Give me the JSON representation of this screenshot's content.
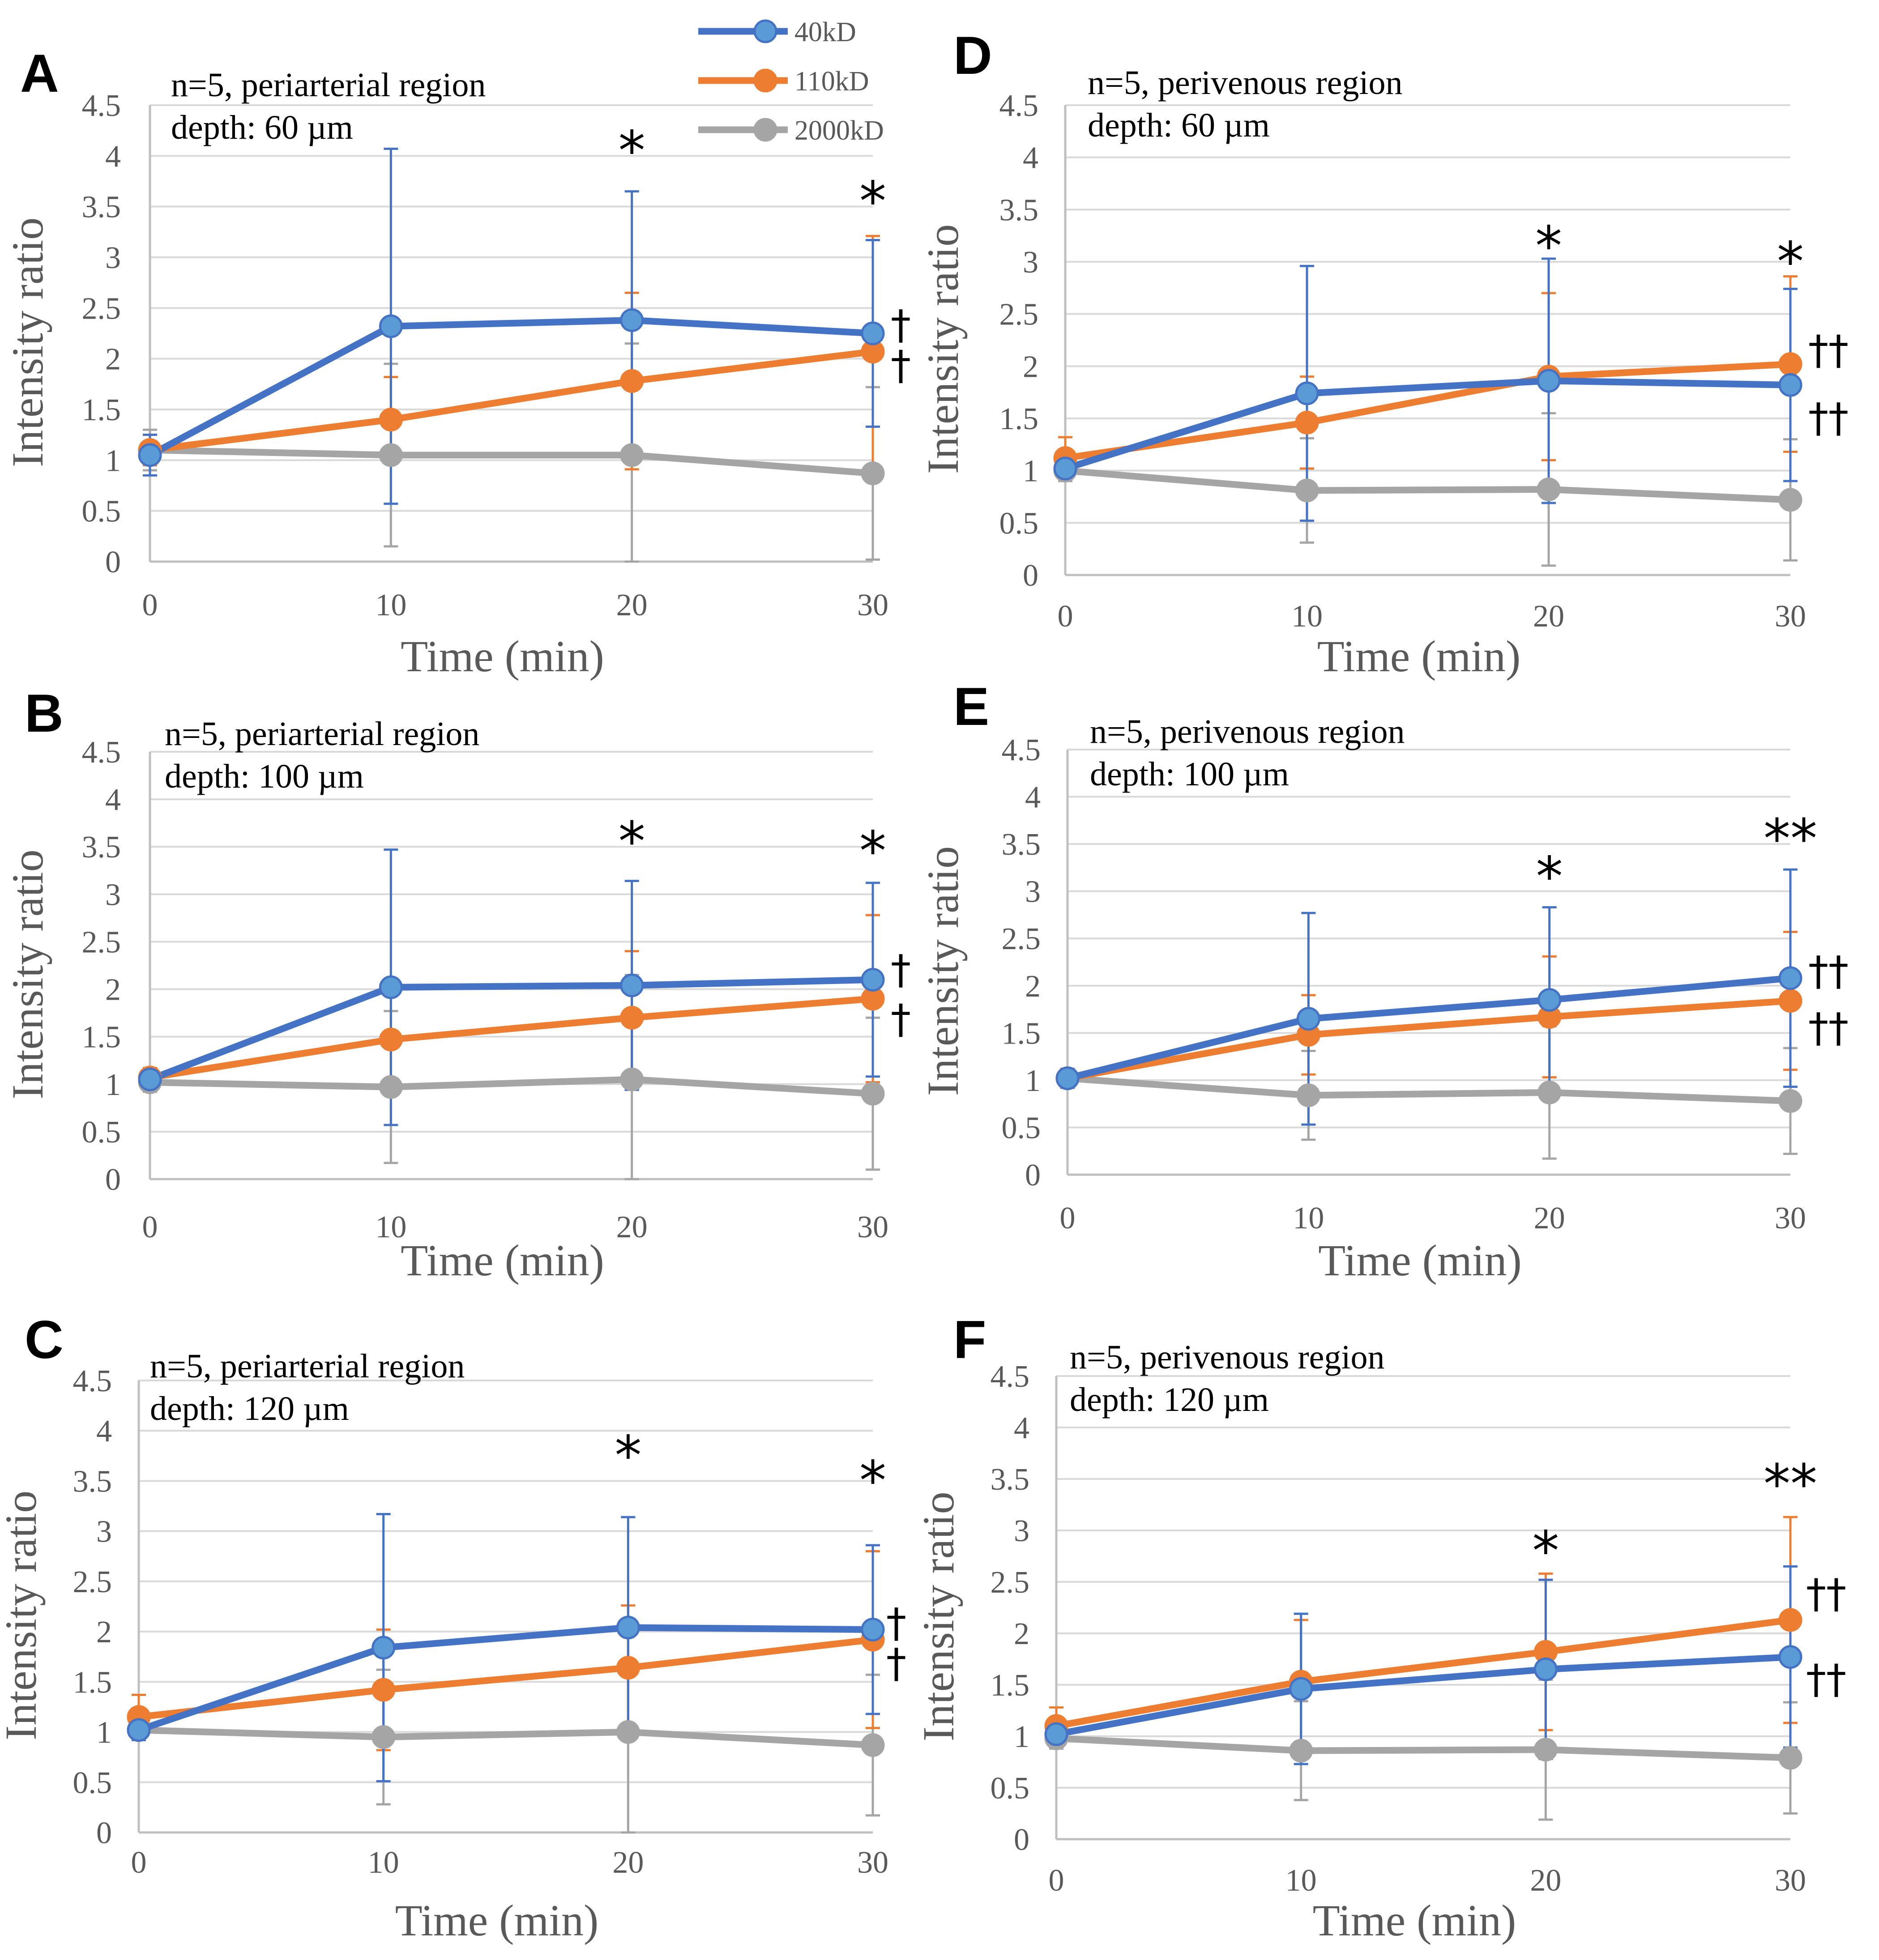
{
  "legend": [
    {
      "label": "40kD",
      "color": "#4472C4",
      "marker_color": "#5B9BD5"
    },
    {
      "label": "110kD",
      "color": "#ED7D31",
      "marker_color": "#ED7D31"
    },
    {
      "label": "2000kD",
      "color": "#A5A5A5",
      "marker_color": "#A5A5A5"
    }
  ],
  "chart_data": [
    {
      "panel": "A",
      "type": "line",
      "annotation": [
        "n=5, periarterial region",
        "depth: 60 µm"
      ],
      "xlabel": "Time (min)",
      "ylabel": "Intensity ratio",
      "x": [
        0,
        10,
        20,
        30
      ],
      "ylim": [
        0,
        4.5
      ],
      "yticks": [
        "0",
        "0.5",
        "1",
        "1.5",
        "2",
        "2.5",
        "3",
        "3.5",
        "4",
        "4.5"
      ],
      "series": [
        {
          "name": "40kD",
          "values": [
            1.05,
            2.32,
            2.38,
            2.25
          ],
          "err": [
            0.2,
            1.75,
            1.27,
            0.92
          ]
        },
        {
          "name": "110kD",
          "values": [
            1.1,
            1.4,
            1.78,
            2.07
          ],
          "err": [
            0.15,
            0.42,
            0.87,
            1.14
          ]
        },
        {
          "name": "2000kD",
          "values": [
            1.1,
            1.05,
            1.05,
            0.87
          ],
          "err": [
            0.2,
            0.9,
            1.1,
            0.85
          ]
        }
      ],
      "markers": [
        {
          "x": 20,
          "text": "*",
          "y": 4.0
        },
        {
          "x": 30,
          "text": "*",
          "y": 3.5
        }
      ],
      "daggers": [
        {
          "y": 2.33,
          "text": "†"
        },
        {
          "y": 1.93,
          "text": "†"
        }
      ]
    },
    {
      "panel": "B",
      "type": "line",
      "annotation": [
        "n=5, periarterial region",
        "depth: 100 µm"
      ],
      "xlabel": "Time (min)",
      "ylabel": "Intensity ratio",
      "x": [
        0,
        10,
        20,
        30
      ],
      "ylim": [
        0,
        4.5
      ],
      "yticks": [
        "0",
        "0.5",
        "1",
        "1.5",
        "2",
        "2.5",
        "3",
        "3.5",
        "4",
        "4.5"
      ],
      "series": [
        {
          "name": "40kD",
          "values": [
            1.05,
            2.02,
            2.04,
            2.1
          ],
          "err": [
            0.1,
            1.45,
            1.1,
            1.02
          ]
        },
        {
          "name": "110kD",
          "values": [
            1.07,
            1.47,
            1.7,
            1.9
          ],
          "err": [
            0.1,
            0.5,
            0.7,
            0.88
          ]
        },
        {
          "name": "2000kD",
          "values": [
            1.02,
            0.97,
            1.05,
            0.9
          ],
          "err": [
            0.1,
            0.8,
            1.1,
            0.8
          ]
        }
      ],
      "markers": [
        {
          "x": 20,
          "text": "*",
          "y": 3.5
        },
        {
          "x": 30,
          "text": "*",
          "y": 3.4
        }
      ],
      "daggers": [
        {
          "y": 2.2,
          "text": "†"
        },
        {
          "y": 1.68,
          "text": "†"
        }
      ]
    },
    {
      "panel": "C",
      "type": "line",
      "annotation": [
        "n=5, periarterial region",
        "depth: 120 µm"
      ],
      "xlabel": "Time (min)",
      "ylabel": "Intensity ratio",
      "x": [
        0,
        10,
        20,
        30
      ],
      "ylim": [
        0,
        4.5
      ],
      "yticks": [
        "0",
        "0.5",
        "1",
        "1.5",
        "2",
        "2.5",
        "3",
        "3.5",
        "4",
        "4.5"
      ],
      "series": [
        {
          "name": "40kD",
          "values": [
            1.02,
            1.84,
            2.04,
            2.02
          ],
          "err": [
            0.1,
            1.33,
            1.1,
            0.84
          ]
        },
        {
          "name": "110kD",
          "values": [
            1.15,
            1.42,
            1.64,
            1.92
          ],
          "err": [
            0.22,
            0.6,
            0.62,
            0.88
          ]
        },
        {
          "name": "2000kD",
          "values": [
            1.02,
            0.95,
            1.0,
            0.87
          ],
          "err": [
            0.1,
            0.67,
            1.0,
            0.7
          ]
        }
      ],
      "markers": [
        {
          "x": 20,
          "text": "*",
          "y": 3.7
        },
        {
          "x": 30,
          "text": "*",
          "y": 3.45
        }
      ],
      "daggers": [
        {
          "y": 2.08,
          "text": "†"
        },
        {
          "y": 1.68,
          "text": "†"
        }
      ]
    },
    {
      "panel": "D",
      "type": "line",
      "annotation": [
        "n=5, perivenous region",
        "depth: 60 µm"
      ],
      "xlabel": "Time (min)",
      "ylabel": "Intensity ratio",
      "x": [
        0,
        10,
        20,
        30
      ],
      "ylim": [
        0,
        4.5
      ],
      "yticks": [
        "0",
        "0.5",
        "1",
        "1.5",
        "2",
        "2.5",
        "3",
        "3.5",
        "4",
        "4.5"
      ],
      "series": [
        {
          "name": "40kD",
          "values": [
            1.02,
            1.74,
            1.86,
            1.82
          ],
          "err": [
            0.1,
            1.22,
            1.17,
            0.92
          ]
        },
        {
          "name": "110kD",
          "values": [
            1.12,
            1.46,
            1.9,
            2.02
          ],
          "err": [
            0.2,
            0.44,
            0.8,
            0.84
          ]
        },
        {
          "name": "2000kD",
          "values": [
            1.0,
            0.81,
            0.82,
            0.72
          ],
          "err": [
            0.1,
            0.5,
            0.73,
            0.58
          ]
        }
      ],
      "markers": [
        {
          "x": 20,
          "text": "*",
          "y": 3.1
        },
        {
          "x": 30,
          "text": "*",
          "y": 2.95
        }
      ],
      "daggers": [
        {
          "y": 2.15,
          "text": "††"
        },
        {
          "y": 1.5,
          "text": "††"
        }
      ]
    },
    {
      "panel": "E",
      "type": "line",
      "annotation": [
        "n=5, perivenous region",
        "depth: 100 µm"
      ],
      "xlabel": "Time (min)",
      "ylabel": "Intensity ratio",
      "x": [
        0,
        10,
        20,
        30
      ],
      "ylim": [
        0,
        4.5
      ],
      "yticks": [
        "0",
        "0.5",
        "1",
        "1.5",
        "2",
        "2.5",
        "3",
        "3.5",
        "4",
        "4.5"
      ],
      "series": [
        {
          "name": "40kD",
          "values": [
            1.02,
            1.65,
            1.85,
            2.08
          ],
          "err": [
            0.1,
            1.12,
            0.98,
            1.15
          ]
        },
        {
          "name": "110kD",
          "values": [
            1.02,
            1.48,
            1.67,
            1.84
          ],
          "err": [
            0.1,
            0.42,
            0.64,
            0.73
          ]
        },
        {
          "name": "2000kD",
          "values": [
            1.02,
            0.84,
            0.87,
            0.78
          ],
          "err": [
            0.1,
            0.47,
            0.7,
            0.56
          ]
        }
      ],
      "markers": [
        {
          "x": 20,
          "text": "*",
          "y": 3.1
        },
        {
          "x": 30,
          "text": "**",
          "y": 3.5
        }
      ],
      "daggers": [
        {
          "y": 2.15,
          "text": "††"
        },
        {
          "y": 1.55,
          "text": "††"
        }
      ]
    },
    {
      "panel": "F",
      "type": "line",
      "annotation": [
        "n=5, perivenous region",
        "depth: 120 µm"
      ],
      "xlabel": "Time (min)",
      "ylabel": "Intensity ratio",
      "x": [
        0,
        10,
        20,
        30
      ],
      "ylim": [
        0,
        4.5
      ],
      "yticks": [
        "0",
        "0.5",
        "1",
        "1.5",
        "2",
        "2.5",
        "3",
        "3.5",
        "4",
        "4.5"
      ],
      "series": [
        {
          "name": "40kD",
          "values": [
            1.02,
            1.46,
            1.65,
            1.77
          ],
          "err": [
            0.1,
            0.73,
            0.87,
            0.88
          ]
        },
        {
          "name": "110kD",
          "values": [
            1.1,
            1.53,
            1.82,
            2.13
          ],
          "err": [
            0.18,
            0.6,
            0.76,
            1.0
          ]
        },
        {
          "name": "2000kD",
          "values": [
            0.98,
            0.86,
            0.87,
            0.79
          ],
          "err": [
            0.1,
            0.48,
            0.68,
            0.54
          ]
        }
      ],
      "markers": [
        {
          "x": 20,
          "text": "*",
          "y": 2.75
        },
        {
          "x": 30,
          "text": "**",
          "y": 3.4
        }
      ],
      "daggers": [
        {
          "y": 2.38,
          "text": "††"
        },
        {
          "y": 1.55,
          "text": "††"
        }
      ]
    }
  ]
}
